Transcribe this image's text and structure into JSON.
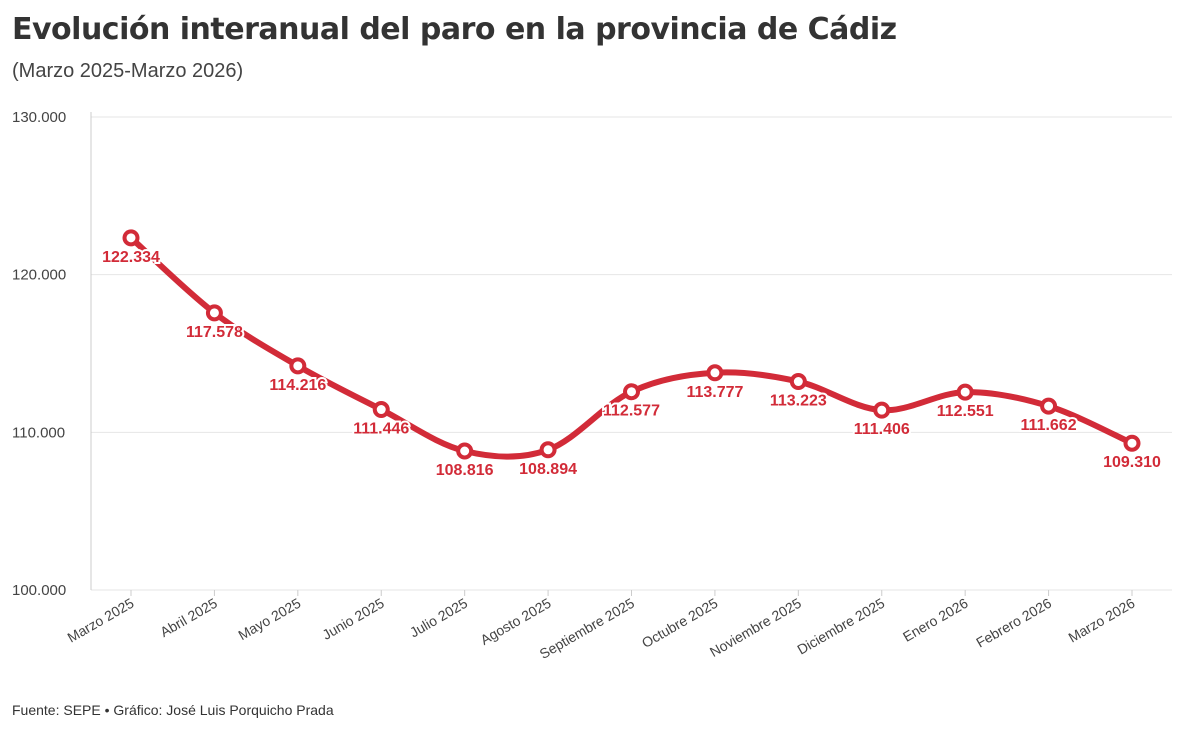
{
  "chart_data": {
    "type": "line",
    "title": "Evolución interanual del paro en la provincia de Cádiz",
    "subtitle": "(Marzo 2025-Marzo 2026)",
    "categories": [
      "Marzo 2025",
      "Abril 2025",
      "Mayo 2025",
      "Junio 2025",
      "Julio 2025",
      "Agosto 2025",
      "Septiembre 2025",
      "Octubre 2025",
      "Noviembre 2025",
      "Diciembre 2025",
      "Enero 2026",
      "Febrero 2026",
      "Marzo 2026"
    ],
    "values": [
      122334,
      117578,
      114216,
      111446,
      108816,
      108894,
      112577,
      113777,
      113223,
      111406,
      112551,
      111662,
      109310
    ],
    "data_labels": [
      "122.334",
      "117.578",
      "114.216",
      "111.446",
      "108.816",
      "108.894",
      "112.577",
      "113.777",
      "113.223",
      "111.406",
      "112.551",
      "111.662",
      "109.310"
    ],
    "ylim": [
      100000,
      130000
    ],
    "yticks": [
      100000,
      110000,
      120000,
      130000
    ],
    "ytick_labels": [
      "100.000",
      "110.000",
      "120.000",
      "130.000"
    ],
    "grid": true,
    "color": "#d22b38",
    "source": "Fuente: SEPE • Gráfico: José Luis Porquicho Prada"
  }
}
